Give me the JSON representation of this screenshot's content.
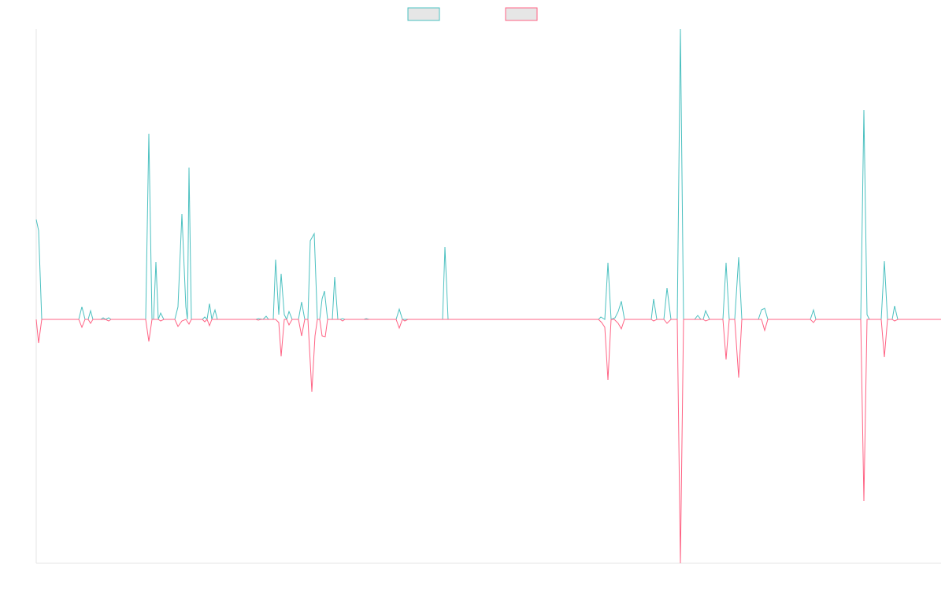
{
  "chart_data": {
    "type": "line",
    "legend": "top",
    "legend_fill": "#e6e6e6",
    "xlim": [
      0,
      1149
    ],
    "ylim": [
      -310,
      369
    ],
    "series": [
      {
        "color": "#4bc0c0",
        "x": [
          0,
          3,
          7,
          54,
          58,
          62,
          66,
          69,
          72,
          82,
          85,
          88,
          92,
          95,
          139,
          143,
          147,
          149,
          152,
          155,
          158,
          162,
          176,
          180,
          185,
          190,
          192,
          194,
          197,
          211,
          214,
          217,
          220,
          223,
          227,
          230,
          279,
          282,
          288,
          292,
          295,
          301,
          304,
          308,
          311,
          315,
          318,
          321,
          325,
          333,
          337,
          341,
          345,
          348,
          353,
          357,
          360,
          363,
          366,
          370,
          376,
          379,
          383,
          386,
          389,
          392,
          416,
          419,
          423,
          457,
          461,
          465,
          468,
          516,
          519,
          523,
          714,
          717,
          722,
          726,
          730,
          735,
          739,
          743,
          747,
          781,
          784,
          788,
          797,
          801,
          806,
          814,
          818,
          822,
          836,
          840,
          844,
          847,
          850,
          855,
          872,
          876,
          880,
          887,
          892,
          896,
          917,
          921,
          925,
          929,
          983,
          987,
          990,
          1047,
          1051,
          1055,
          1058,
          1073,
          1077,
          1081,
          1087,
          1090,
          1094,
          1149
        ],
        "values": [
          127,
          113,
          0,
          0,
          16,
          0,
          0,
          11,
          0,
          0,
          2,
          0,
          2,
          0,
          0,
          236,
          0,
          0,
          73,
          0,
          8,
          0,
          0,
          16,
          134,
          16,
          0,
          193,
          0,
          0,
          3,
          0,
          20,
          0,
          12,
          0,
          0,
          1,
          0,
          4,
          0,
          0,
          76,
          6,
          58,
          6,
          0,
          10,
          0,
          0,
          22,
          0,
          0,
          100,
          109,
          0,
          0,
          26,
          36,
          0,
          0,
          54,
          0,
          0,
          1,
          0,
          0,
          1,
          0,
          0,
          13,
          0,
          0,
          0,
          92,
          0,
          0,
          3,
          0,
          72,
          0,
          2,
          10,
          23,
          0,
          0,
          26,
          0,
          0,
          40,
          0,
          0,
          369,
          0,
          0,
          5,
          0,
          0,
          11,
          0,
          0,
          72,
          0,
          0,
          79,
          0,
          0,
          12,
          14,
          0,
          0,
          12,
          0,
          0,
          266,
          6,
          0,
          0,
          74,
          0,
          0,
          17,
          0,
          0
        ]
      },
      {
        "color": "#ff6384",
        "x": [
          0,
          3,
          7,
          54,
          58,
          62,
          66,
          69,
          72,
          88,
          92,
          95,
          139,
          143,
          147,
          155,
          158,
          162,
          176,
          180,
          185,
          190,
          194,
          197,
          211,
          214,
          217,
          220,
          223,
          279,
          282,
          285,
          304,
          308,
          311,
          315,
          318,
          321,
          325,
          333,
          337,
          341,
          345,
          350,
          354,
          357,
          360,
          363,
          367,
          370,
          386,
          389,
          392,
          457,
          461,
          465,
          468,
          472,
          714,
          718,
          722,
          726,
          730,
          734,
          739,
          743,
          747,
          781,
          784,
          788,
          797,
          801,
          806,
          814,
          818,
          822,
          847,
          850,
          855,
          872,
          876,
          880,
          887,
          892,
          896,
          917,
          921,
          925,
          929,
          983,
          987,
          990,
          1047,
          1051,
          1055,
          1073,
          1077,
          1081,
          1087,
          1090,
          1094,
          1149
        ],
        "values": [
          0,
          -30,
          0,
          0,
          -10,
          0,
          0,
          -5,
          0,
          0,
          -2,
          0,
          0,
          -28,
          0,
          0,
          -2,
          0,
          0,
          -9,
          -2,
          0,
          -6,
          0,
          0,
          -3,
          0,
          -8,
          0,
          0,
          -1,
          0,
          0,
          -4,
          -47,
          0,
          0,
          -7,
          0,
          0,
          -21,
          0,
          0,
          -92,
          -21,
          0,
          0,
          -21,
          -22,
          0,
          0,
          -2,
          0,
          0,
          -11,
          0,
          -2,
          0,
          0,
          -4,
          -10,
          -77,
          0,
          0,
          -5,
          -12,
          0,
          0,
          -2,
          0,
          0,
          -5,
          0,
          0,
          -310,
          0,
          0,
          -2,
          0,
          0,
          -51,
          0,
          0,
          -74,
          0,
          0,
          0,
          -14,
          0,
          0,
          -4,
          0,
          0,
          -231,
          0,
          0,
          -48,
          0,
          0,
          -2,
          0,
          0
        ]
      }
    ]
  }
}
